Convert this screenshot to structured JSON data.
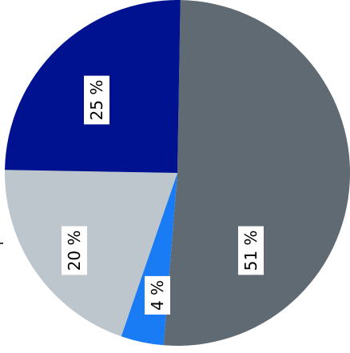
{
  "chart_data": {
    "type": "pie",
    "title": "",
    "slices": [
      {
        "label": "51 %",
        "value": 51,
        "color": "#5f6a72"
      },
      {
        "label": "4 %",
        "value": 4,
        "color": "#1a7cf5"
      },
      {
        "label": "20 %",
        "value": 20,
        "color": "#bcc6cc"
      },
      {
        "label": "25 %",
        "value": 25,
        "color": "#00128f"
      }
    ]
  }
}
